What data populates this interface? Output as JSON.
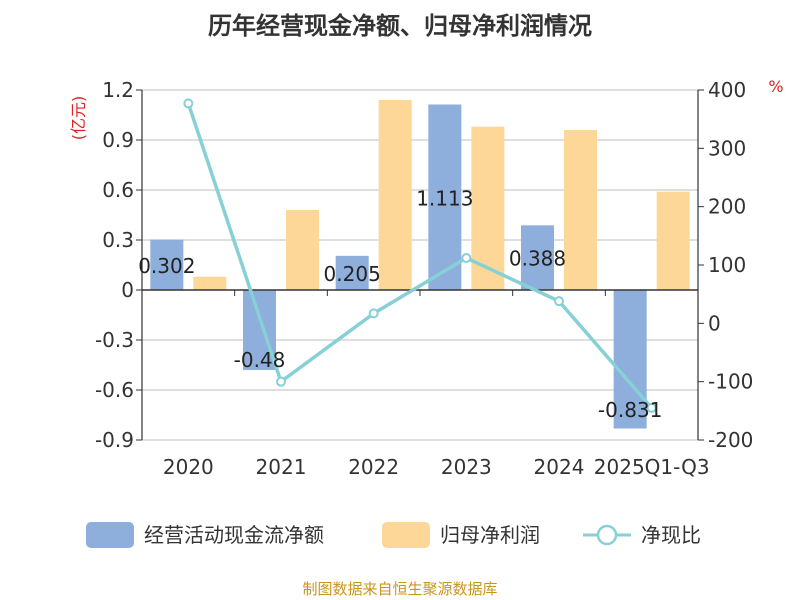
{
  "chart_data": {
    "type": "bar",
    "title": "历年经营现金净额、归母净利润情况",
    "categories": [
      "2020",
      "2021",
      "2022",
      "2023",
      "2024",
      "2025Q1-Q3"
    ],
    "left_axis": {
      "unit": "(亿元)",
      "ylim": [
        -0.9,
        1.2
      ],
      "ticks": [
        "1.2",
        "0.9",
        "0.6",
        "0.3",
        "0",
        "-0.3",
        "-0.6",
        "-0.9"
      ]
    },
    "right_axis": {
      "unit": "%",
      "ylim": [
        -200,
        400
      ],
      "ticks": [
        "400",
        "300",
        "200",
        "100",
        "0",
        "-100",
        "-200"
      ]
    },
    "series": [
      {
        "name": "经营活动现金流净额",
        "type": "bar",
        "axis": "left",
        "color": "#8eaedb",
        "values": [
          0.302,
          -0.48,
          0.205,
          1.113,
          0.388,
          -0.831
        ],
        "labels": [
          "0.302",
          "-0.48",
          "0.205",
          "1.113",
          "0.388",
          "-0.831"
        ]
      },
      {
        "name": "归母净利润",
        "type": "bar",
        "axis": "left",
        "color": "#fdd797",
        "values": [
          0.08,
          0.48,
          1.14,
          0.98,
          0.96,
          0.59
        ]
      },
      {
        "name": "净现比",
        "type": "line",
        "axis": "right",
        "color": "#86d0d6",
        "values": [
          377,
          -100,
          17,
          112,
          38,
          -145
        ]
      }
    ],
    "grid": true,
    "legend": "bottom"
  },
  "source": "制图数据来自恒生聚源数据库"
}
